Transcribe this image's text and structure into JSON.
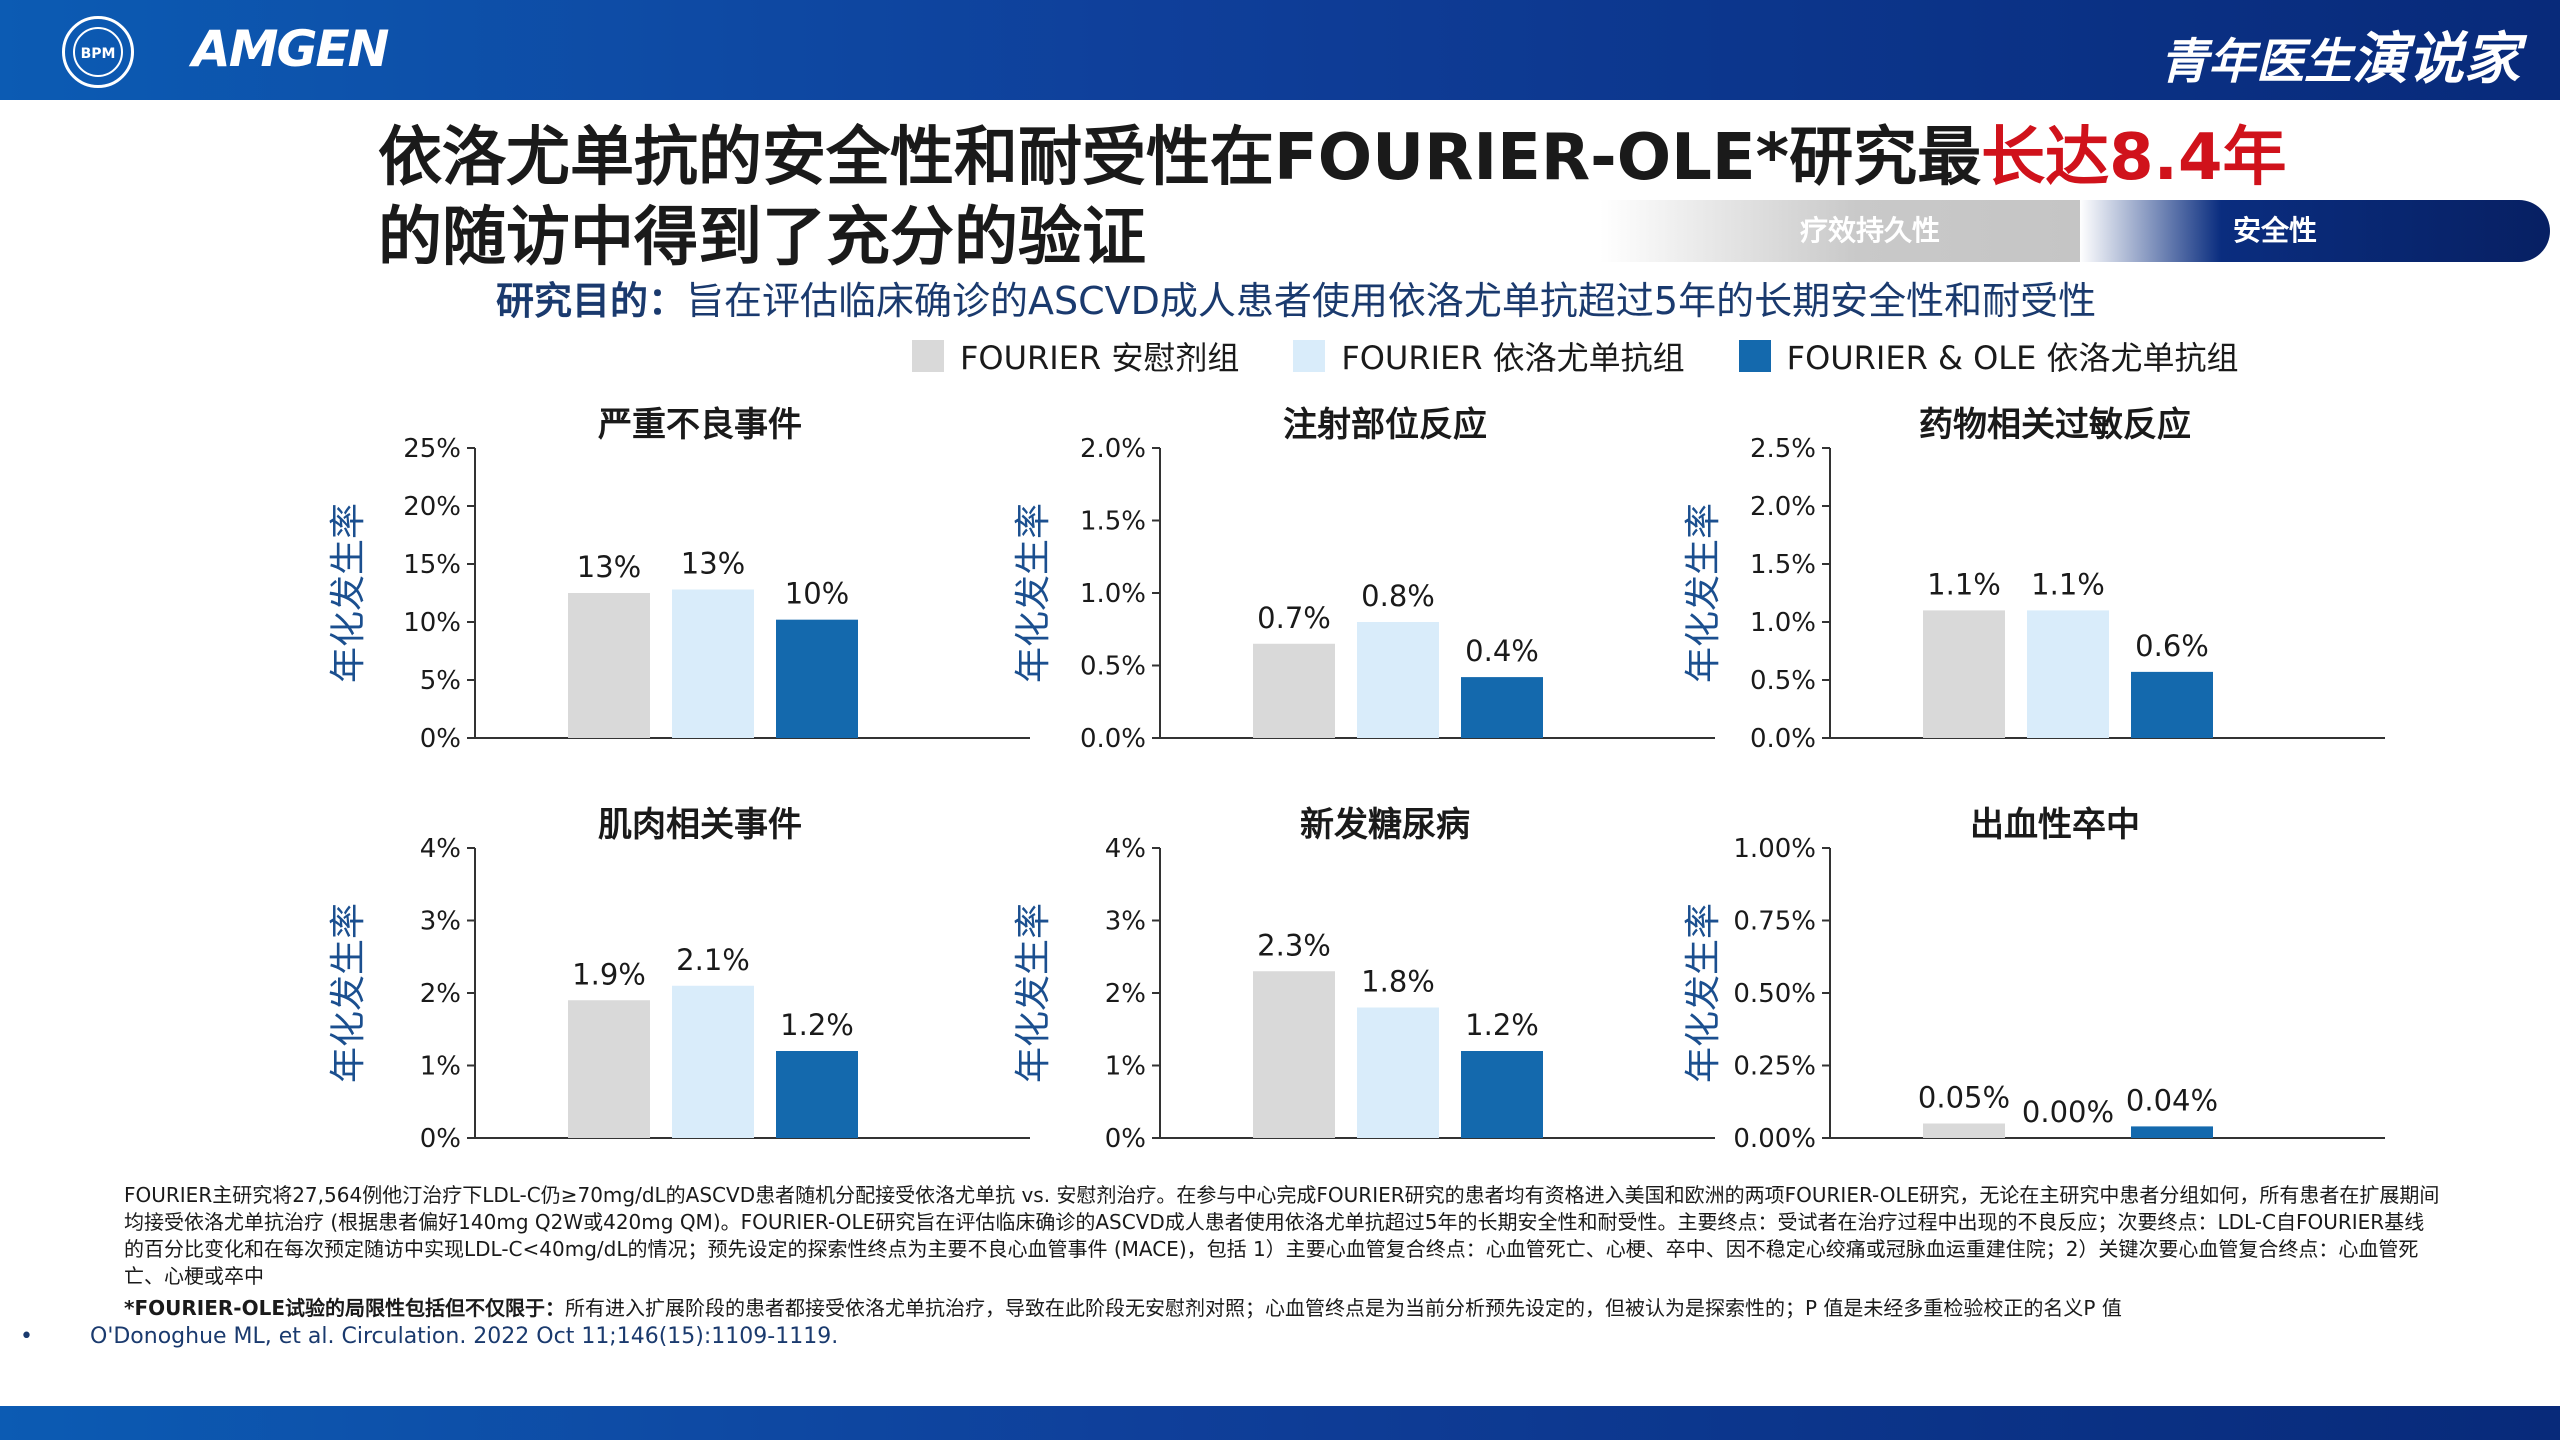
{
  "header": {
    "seal_text": "BPM",
    "company": "AMGEN",
    "brand_a": "青年医生",
    "brand_b": "演说家"
  },
  "title": {
    "part1": "依洛尤单抗的安全性和耐受性在FOURIER-OLE*研究最",
    "highlight": "长达8.4年",
    "line2": "的随访中得到了充分的验证"
  },
  "tabs": [
    "疗效持久性",
    "安全性"
  ],
  "objective": {
    "label": "研究目的：",
    "text": "旨在评估临床确诊的ASCVD成人患者使用依洛尤单抗超过5年的长期安全性和耐受性"
  },
  "legend": [
    {
      "label": "FOURIER 安慰剂组",
      "color": "#d9d9d9"
    },
    {
      "label": "FOURIER 依洛尤单抗组",
      "color": "#d9ecfa"
    },
    {
      "label": "FOURIER & OLE 依洛尤单抗组",
      "color": "#1469ad"
    }
  ],
  "chart_data": [
    {
      "type": "bar",
      "title": "严重不良事件",
      "ylabel": "年化发生率",
      "ylim": [
        0,
        25
      ],
      "ticks": [
        "0%",
        "5%",
        "10%",
        "15%",
        "20%",
        "25%"
      ],
      "tick_values": [
        0,
        5,
        10,
        15,
        20,
        25
      ],
      "values": [
        12.5,
        12.8,
        10.2
      ],
      "labels": [
        "13%",
        "13%",
        "10%"
      ]
    },
    {
      "type": "bar",
      "title": "注射部位反应",
      "ylabel": "年化发生率",
      "ylim": [
        0,
        2.0
      ],
      "ticks": [
        "0.0%",
        "0.5%",
        "1.0%",
        "1.5%",
        "2.0%"
      ],
      "tick_values": [
        0,
        0.5,
        1.0,
        1.5,
        2.0
      ],
      "values": [
        0.65,
        0.8,
        0.42
      ],
      "labels": [
        "0.7%",
        "0.8%",
        "0.4%"
      ]
    },
    {
      "type": "bar",
      "title": "药物相关过敏反应",
      "ylabel": "年化发生率",
      "ylim": [
        0,
        2.5
      ],
      "ticks": [
        "0.0%",
        "0.5%",
        "1.0%",
        "1.5%",
        "2.0%",
        "2.5%"
      ],
      "tick_values": [
        0,
        0.5,
        1.0,
        1.5,
        2.0,
        2.5
      ],
      "values": [
        1.1,
        1.1,
        0.57
      ],
      "labels": [
        "1.1%",
        "1.1%",
        "0.6%"
      ]
    },
    {
      "type": "bar",
      "title": "肌肉相关事件",
      "ylabel": "年化发生率",
      "ylim": [
        0,
        4
      ],
      "ticks": [
        "0%",
        "1%",
        "2%",
        "3%",
        "4%"
      ],
      "tick_values": [
        0,
        1,
        2,
        3,
        4
      ],
      "values": [
        1.9,
        2.1,
        1.2
      ],
      "labels": [
        "1.9%",
        "2.1%",
        "1.2%"
      ]
    },
    {
      "type": "bar",
      "title": "新发糖尿病",
      "ylabel": "年化发生率",
      "ylim": [
        0,
        4
      ],
      "ticks": [
        "0%",
        "1%",
        "2%",
        "3%",
        "4%"
      ],
      "tick_values": [
        0,
        1,
        2,
        3,
        4
      ],
      "values": [
        2.3,
        1.8,
        1.2
      ],
      "labels": [
        "2.3%",
        "1.8%",
        "1.2%"
      ]
    },
    {
      "type": "bar",
      "title": "出血性卒中",
      "ylabel": "年化发生率",
      "ylim": [
        0,
        1.0
      ],
      "ticks": [
        "0.00%",
        "0.25%",
        "0.50%",
        "0.75%",
        "1.00%"
      ],
      "tick_values": [
        0,
        0.25,
        0.5,
        0.75,
        1.0
      ],
      "values": [
        0.05,
        0.0,
        0.04
      ],
      "labels": [
        "0.05%",
        "0.00%",
        "0.04%"
      ]
    }
  ],
  "footnote": "FOURIER主研究将27,564例他汀治疗下LDL-C仍≥70mg/dL的ASCVD患者随机分配接受依洛尤单抗 vs. 安慰剂治疗。在参与中心完成FOURIER研究的患者均有资格进入美国和欧洲的两项FOURIER-OLE研究，无论在主研究中患者分组如何，所有患者在扩展期间均接受依洛尤单抗治疗 (根据患者偏好140mg Q2W或420mg QM)。FOURIER-OLE研究旨在评估临床确诊的ASCVD成人患者使用依洛尤单抗超过5年的长期安全性和耐受性。主要终点：受试者在治疗过程中出现的不良反应；次要终点：LDL-C自FOURIER基线的百分比变化和在每次预定随访中实现LDL-C<40mg/dL的情况；预先设定的探索性终点为主要不良心血管事件 (MACE)，包括 1）主要心血管复合终点：心血管死亡、心梗、卒中、因不稳定心绞痛或冠脉血运重建住院；2）关键次要心血管复合终点：心血管死亡、心梗或卒中",
  "limitations": {
    "label": "*FOURIER-OLE试验的局限性包括但不仅限于：",
    "text": "所有进入扩展阶段的患者都接受依洛尤单抗治疗，导致在此阶段无安慰剂对照；心血管终点是为当前分析预先设定的，但被认为是探索性的；P 值是未经多重检验校正的名义P 值"
  },
  "reference": {
    "bullet": "•",
    "text": "O'Donoghue ML, et al. Circulation. 2022 Oct 11;146(15):1109-1119."
  }
}
